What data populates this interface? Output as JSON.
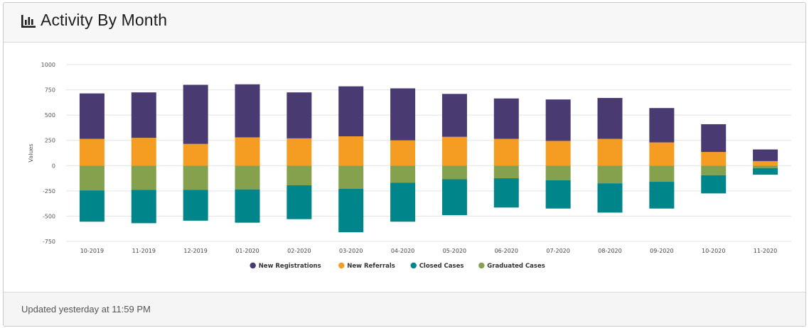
{
  "card": {
    "title": "Activity By Month",
    "title_icon": "bar-chart-icon",
    "footer": "Updated yesterday at 11:59 PM"
  },
  "chart_data": {
    "type": "bar",
    "stacked": true,
    "title": "",
    "xlabel": "",
    "ylabel": "Values",
    "ylim": [
      -750,
      1000
    ],
    "yticks": [
      -750,
      -500,
      -250,
      0,
      250,
      500,
      750,
      1000
    ],
    "grid": true,
    "legend_position": "bottom",
    "categories": [
      "10-2019",
      "11-2019",
      "12-2019",
      "01-2020",
      "02-2020",
      "03-2020",
      "04-2020",
      "05-2020",
      "06-2020",
      "07-2020",
      "08-2020",
      "09-2020",
      "10-2020",
      "11-2020"
    ],
    "series": [
      {
        "name": "New Registrations",
        "color": "#4a3a72",
        "values": [
          450,
          450,
          585,
          525,
          455,
          495,
          515,
          425,
          400,
          410,
          405,
          340,
          275,
          115
        ]
      },
      {
        "name": "New Referrals",
        "color": "#f59d23",
        "values": [
          265,
          275,
          215,
          280,
          270,
          290,
          250,
          285,
          265,
          245,
          265,
          230,
          135,
          45
        ]
      },
      {
        "name": "Closed Cases",
        "color": "#00858a",
        "values": [
          -310,
          -330,
          -305,
          -330,
          -335,
          -430,
          -385,
          -355,
          -290,
          -280,
          -290,
          -265,
          -180,
          -65
        ]
      },
      {
        "name": "Graduated Cases",
        "color": "#85a14e",
        "values": [
          -245,
          -240,
          -240,
          -235,
          -195,
          -230,
          -170,
          -135,
          -125,
          -145,
          -175,
          -160,
          -95,
          -25
        ]
      }
    ]
  }
}
